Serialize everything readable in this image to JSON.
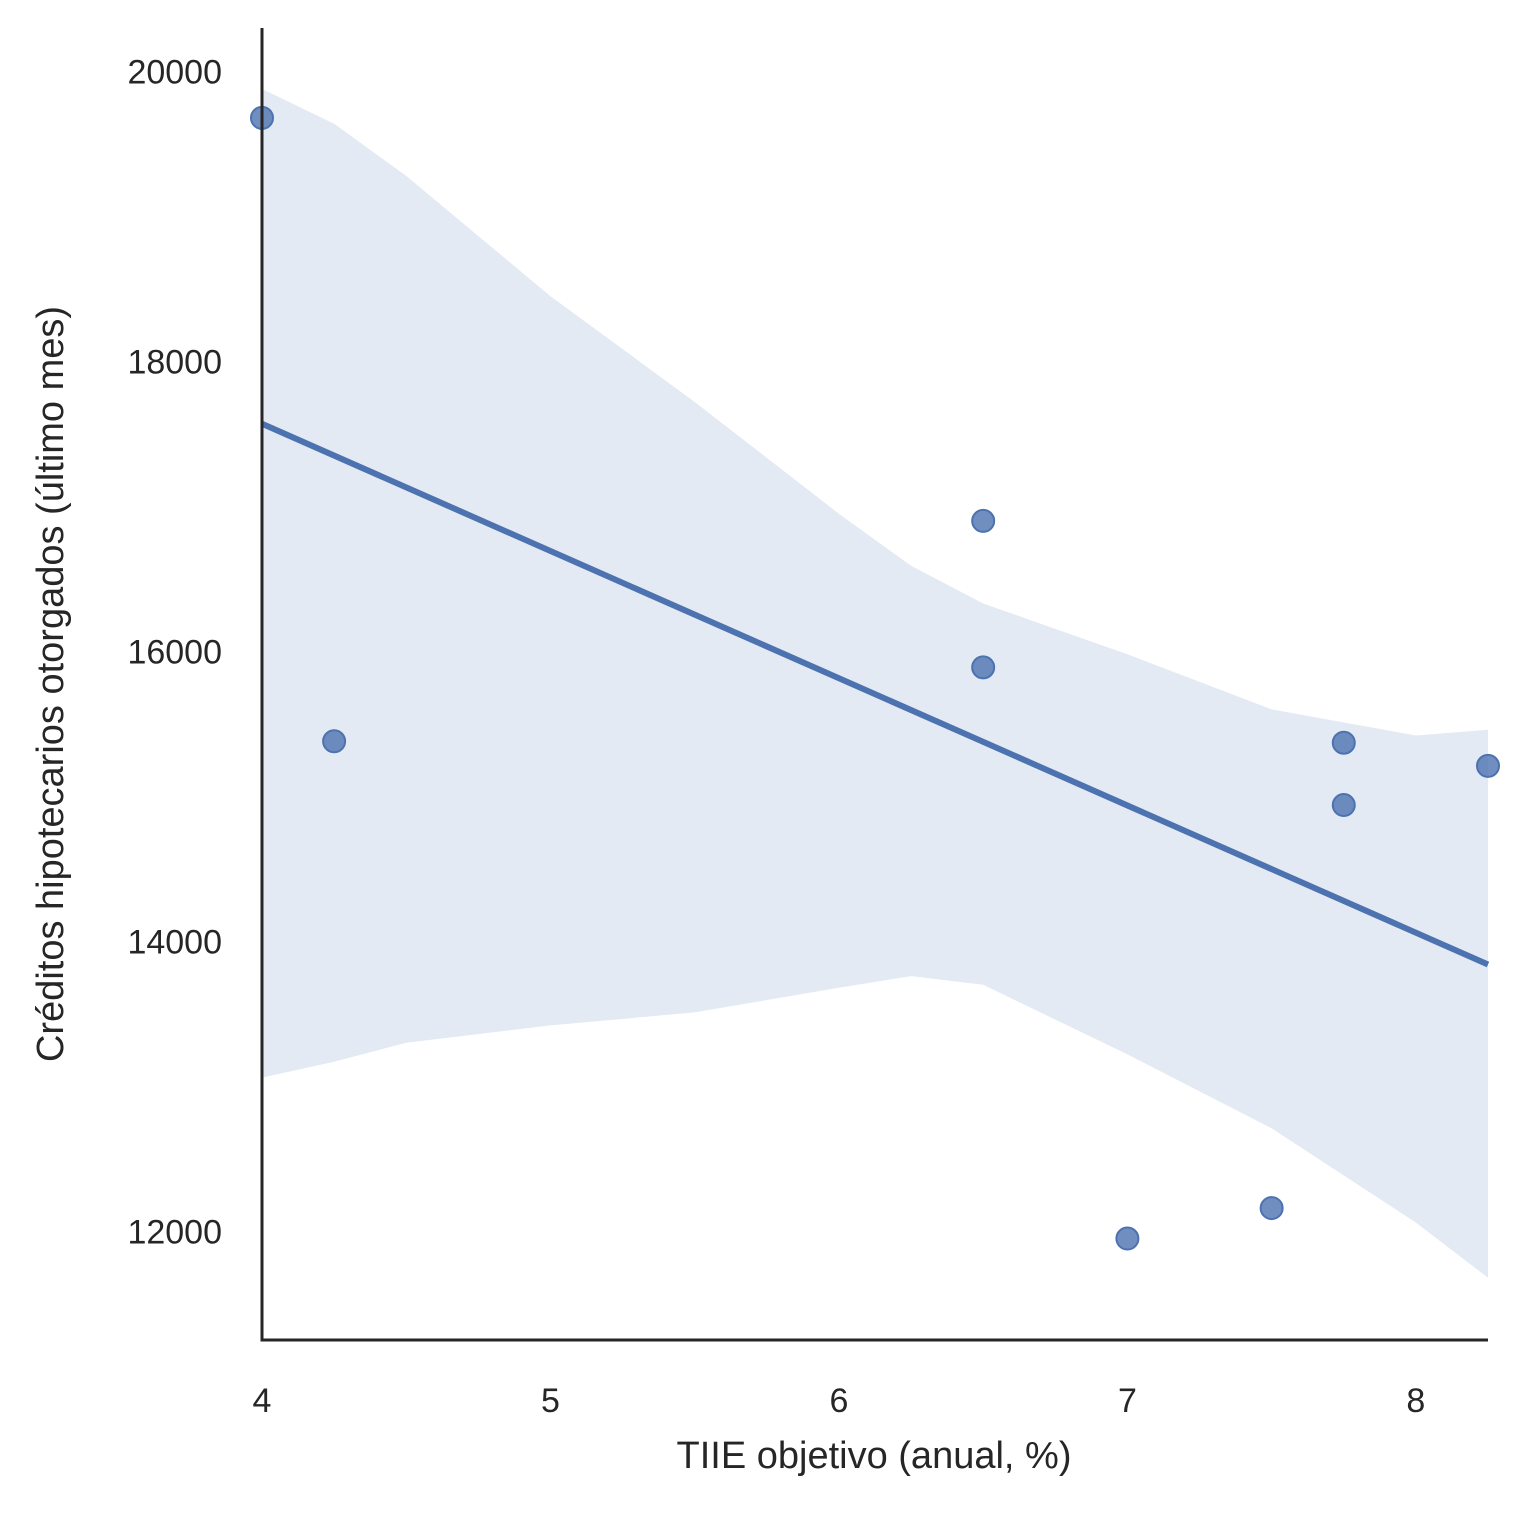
{
  "chart_data": {
    "type": "scatter",
    "title": "",
    "xlabel": "TIIE objetivo (anual, %)",
    "ylabel": "Créditos hipotecarios otorgados (último mes)",
    "xlim": [
      4,
      8.25
    ],
    "ylim": [
      11250,
      20300
    ],
    "xticks": [
      4,
      5,
      6,
      7,
      8
    ],
    "yticks": [
      12000,
      14000,
      16000,
      18000,
      20000
    ],
    "grid": false,
    "colors": {
      "points": "#4c72b0",
      "line": "#4c72b0",
      "band": "#4c72b0"
    },
    "points": [
      {
        "x": 4.0,
        "y": 19680
      },
      {
        "x": 4.25,
        "y": 15380
      },
      {
        "x": 6.5,
        "y": 16900
      },
      {
        "x": 6.5,
        "y": 15890
      },
      {
        "x": 7.0,
        "y": 11950
      },
      {
        "x": 7.5,
        "y": 12160
      },
      {
        "x": 7.75,
        "y": 15370
      },
      {
        "x": 7.75,
        "y": 14940
      },
      {
        "x": 8.25,
        "y": 15210
      }
    ],
    "regression": {
      "x": [
        4.0,
        8.25
      ],
      "y": [
        17570,
        13840
      ]
    },
    "confidence_band": {
      "x": [
        4.0,
        4.25,
        4.5,
        5.0,
        5.5,
        6.0,
        6.25,
        6.5,
        7.0,
        7.5,
        8.0,
        8.25
      ],
      "upper": [
        19880,
        19640,
        19280,
        18450,
        17720,
        16950,
        16590,
        16330,
        15980,
        15600,
        15420,
        15460
      ],
      "lower": [
        13060,
        13170,
        13300,
        13420,
        13510,
        13680,
        13760,
        13700,
        13220,
        12710,
        12060,
        11680
      ]
    }
  }
}
